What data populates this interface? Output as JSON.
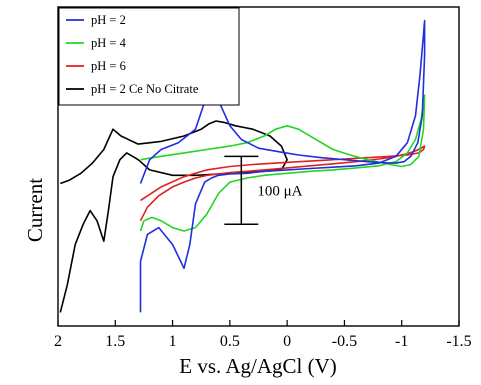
{
  "chart_data": {
    "type": "line",
    "xlabel": "E vs. Ag/AgCl (V)",
    "ylabel": "Current",
    "xlim": [
      2,
      -1.5
    ],
    "x_reversed": true,
    "x_ticks": [
      "2",
      "1.5",
      "1",
      "0.5",
      "0",
      "-0.5",
      "-1",
      "-1.5"
    ],
    "x_tick_values": [
      2,
      1.5,
      1,
      0.5,
      0,
      -0.5,
      -1,
      -1.5
    ],
    "ylim": [
      -1.5,
      3.2
    ],
    "y_units": "relative (scale bar)",
    "legend_position": "top-left",
    "scale_bar": {
      "label": "100 μA",
      "length": 1.0
    },
    "series": [
      {
        "name": "pH = 2",
        "color": "#1f2fe0",
        "x": [
          1.28,
          1.28,
          1.22,
          1.12,
          1.0,
          0.9,
          0.85,
          0.8,
          0.72,
          0.66,
          0.6,
          0.5,
          0.35,
          0.2,
          0.0,
          -0.2,
          -0.4,
          -0.6,
          -0.8,
          -0.95,
          -1.05,
          -1.12,
          -1.16,
          -1.19,
          -1.2,
          -1.2,
          -1.18,
          -1.14,
          -1.08,
          -1.02,
          -0.95,
          -0.9,
          -0.7,
          -0.5,
          -0.3,
          -0.1,
          0.05,
          0.25,
          0.4,
          0.5,
          0.58,
          0.63,
          0.66,
          0.7,
          0.8,
          0.95,
          1.1,
          1.2,
          1.28
        ],
        "y": [
          -1.3,
          -0.55,
          -0.15,
          -0.05,
          -0.3,
          -0.65,
          -0.3,
          0.3,
          0.62,
          0.68,
          0.72,
          0.74,
          0.75,
          0.78,
          0.8,
          0.82,
          0.84,
          0.86,
          0.9,
          1.0,
          1.2,
          1.6,
          2.2,
          2.8,
          3.0,
          2.5,
          1.6,
          1.2,
          1.0,
          0.92,
          0.9,
          0.9,
          0.92,
          0.95,
          0.98,
          1.02,
          1.06,
          1.12,
          1.25,
          1.45,
          1.75,
          1.95,
          2.0,
          1.9,
          1.4,
          1.2,
          1.1,
          0.95,
          0.6
        ]
      },
      {
        "name": "pH = 4",
        "color": "#22d622",
        "x": [
          1.28,
          1.25,
          1.18,
          1.1,
          1.0,
          0.9,
          0.8,
          0.7,
          0.6,
          0.5,
          0.35,
          0.2,
          0.0,
          -0.2,
          -0.4,
          -0.6,
          -0.8,
          -0.95,
          -1.05,
          -1.12,
          -1.17,
          -1.2,
          -1.19,
          -1.15,
          -1.08,
          -1.0,
          -0.9,
          -0.7,
          -0.55,
          -0.4,
          -0.25,
          -0.1,
          0.0,
          0.1,
          0.2,
          0.35,
          0.5,
          0.7,
          0.9,
          1.1,
          1.28
        ],
        "y": [
          -0.1,
          0.05,
          0.1,
          0.05,
          -0.05,
          -0.1,
          -0.05,
          0.15,
          0.45,
          0.62,
          0.68,
          0.72,
          0.75,
          0.78,
          0.8,
          0.83,
          0.86,
          0.92,
          1.05,
          1.25,
          1.55,
          1.9,
          1.4,
          1.0,
          0.88,
          0.85,
          0.88,
          0.95,
          1.02,
          1.1,
          1.25,
          1.4,
          1.45,
          1.4,
          1.3,
          1.2,
          1.15,
          1.1,
          1.05,
          1.0,
          0.95
        ]
      },
      {
        "name": "pH = 6",
        "color": "#e02020",
        "x": [
          1.28,
          1.22,
          1.12,
          1.0,
          0.9,
          0.8,
          0.7,
          0.6,
          0.5,
          0.35,
          0.2,
          0.0,
          -0.2,
          -0.4,
          -0.6,
          -0.8,
          -0.95,
          -1.05,
          -1.12,
          -1.17,
          -1.2,
          -1.19,
          -1.15,
          -1.05,
          -0.9,
          -0.7,
          -0.5,
          -0.3,
          -0.1,
          0.1,
          0.3,
          0.5,
          0.7,
          0.9,
          1.1,
          1.28
        ],
        "y": [
          0.05,
          0.25,
          0.42,
          0.55,
          0.62,
          0.68,
          0.72,
          0.74,
          0.76,
          0.78,
          0.8,
          0.83,
          0.86,
          0.89,
          0.92,
          0.96,
          1.0,
          1.04,
          1.08,
          1.12,
          1.15,
          1.1,
          1.05,
          1.02,
          1.0,
          0.98,
          0.96,
          0.94,
          0.92,
          0.9,
          0.88,
          0.85,
          0.8,
          0.7,
          0.55,
          0.35
        ]
      },
      {
        "name": "pH = 2 Ce No Citrate",
        "color": "#000000",
        "x": [
          1.98,
          1.92,
          1.85,
          1.78,
          1.72,
          1.66,
          1.6,
          1.56,
          1.52,
          1.46,
          1.4,
          1.3,
          1.2,
          1.0,
          0.8,
          0.6,
          0.4,
          0.2,
          0.05,
          0.0,
          0.05,
          0.15,
          0.3,
          0.45,
          0.55,
          0.62,
          0.68,
          0.75,
          0.9,
          1.1,
          1.3,
          1.45,
          1.52,
          1.6,
          1.7,
          1.8,
          1.9,
          1.98
        ],
        "y": [
          -1.3,
          -0.9,
          -0.3,
          0.0,
          0.2,
          0.05,
          -0.25,
          0.2,
          0.7,
          0.95,
          1.05,
          0.95,
          0.8,
          0.72,
          0.72,
          0.74,
          0.76,
          0.78,
          0.8,
          0.95,
          1.15,
          1.3,
          1.4,
          1.45,
          1.5,
          1.52,
          1.48,
          1.4,
          1.3,
          1.22,
          1.18,
          1.3,
          1.4,
          1.1,
          0.9,
          0.75,
          0.65,
          0.6
        ]
      }
    ]
  }
}
